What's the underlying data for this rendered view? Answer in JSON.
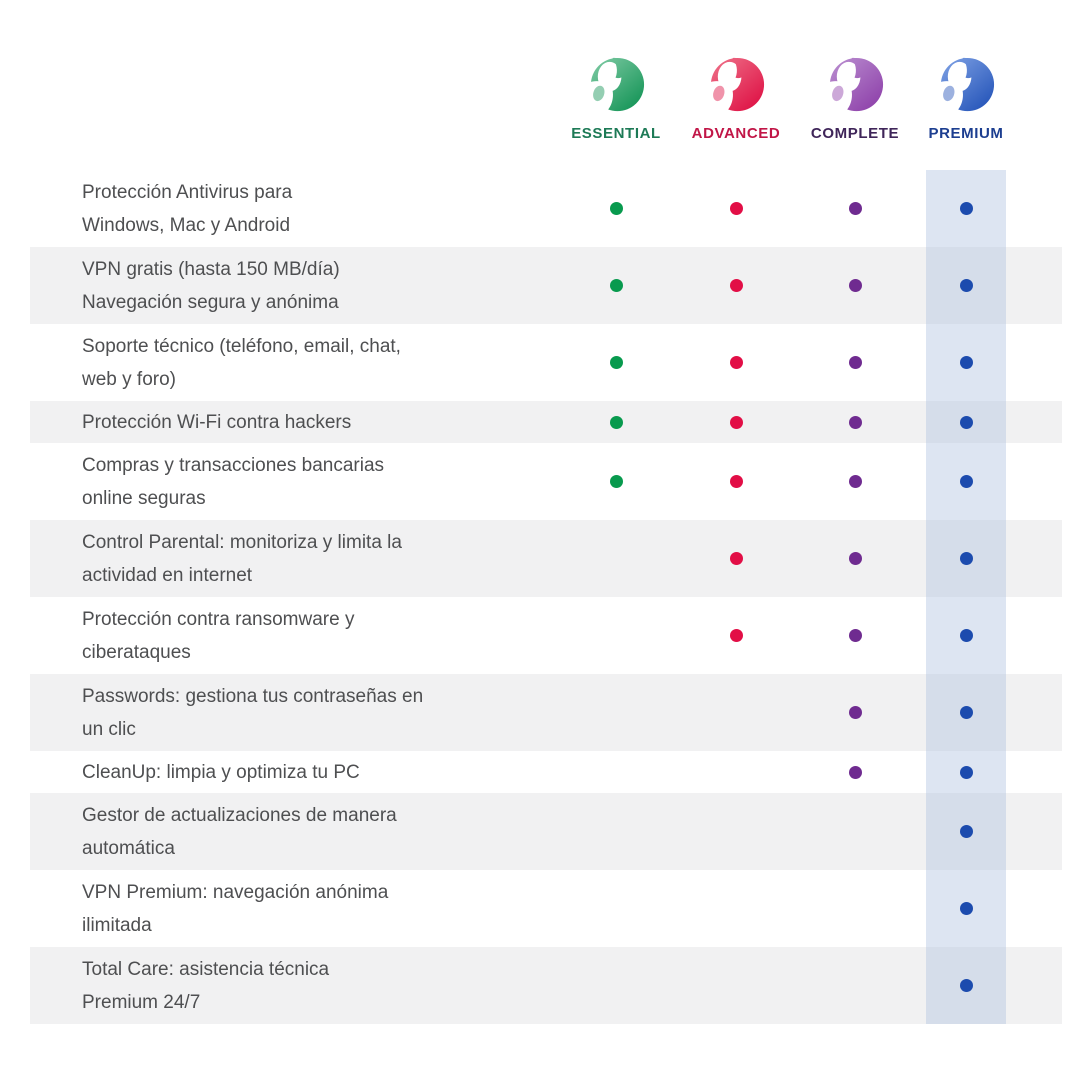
{
  "header": {
    "plans": [
      {
        "label": "ESSENTIAL",
        "label_color": "#1d7a56",
        "dot_color": "#089a4e",
        "logo_light": "#7cc9a2",
        "logo_dark": "#129355"
      },
      {
        "label": "ADVANCED",
        "label_color": "#c11647",
        "dot_color": "#e20e46",
        "logo_light": "#ee6e87",
        "logo_dark": "#de0f43"
      },
      {
        "label": "COMPLETE",
        "label_color": "#3f2559",
        "dot_color": "#6f2b90",
        "logo_light": "#b98ccf",
        "logo_dark": "#8d3fa9"
      },
      {
        "label": "PREMIUM",
        "label_color": "#1c3e90",
        "dot_color": "#1c4bae",
        "logo_light": "#7c9fe3",
        "logo_dark": "#2353b8"
      }
    ]
  },
  "table": {
    "rows": [
      {
        "lines": [
          "Protección Antivirus para",
          "Windows, Mac y Android"
        ],
        "included": [
          true,
          true,
          true,
          true
        ]
      },
      {
        "lines": [
          "VPN gratis (hasta 150 MB/día)",
          "Navegación segura y anónima"
        ],
        "included": [
          true,
          true,
          true,
          true
        ]
      },
      {
        "lines": [
          "Soporte técnico (teléfono, email, chat,",
          "web y foro)"
        ],
        "included": [
          true,
          true,
          true,
          true
        ]
      },
      {
        "lines": [
          "Protección Wi-Fi contra hackers"
        ],
        "included": [
          true,
          true,
          true,
          true
        ]
      },
      {
        "lines": [
          "Compras y transacciones bancarias",
          "online seguras"
        ],
        "included": [
          true,
          true,
          true,
          true
        ]
      },
      {
        "lines": [
          "Control Parental: monitoriza y limita la",
          "actividad en internet"
        ],
        "included": [
          false,
          true,
          true,
          true
        ]
      },
      {
        "lines": [
          "Protección contra ransomware y",
          "ciberataques"
        ],
        "included": [
          false,
          true,
          true,
          true
        ]
      },
      {
        "lines": [
          "Passwords: gestiona tus contraseñas en",
          "un clic"
        ],
        "included": [
          false,
          false,
          true,
          true
        ]
      },
      {
        "lines": [
          "CleanUp: limpia y optimiza tu PC"
        ],
        "included": [
          false,
          false,
          true,
          true
        ]
      },
      {
        "lines": [
          "Gestor de actualizaciones de manera",
          "automática"
        ],
        "included": [
          false,
          false,
          false,
          true
        ]
      },
      {
        "lines": [
          "VPN Premium: navegación anónima",
          "ilimitada"
        ],
        "included": [
          false,
          false,
          false,
          true
        ]
      },
      {
        "lines": [
          "Total Care: asistencia técnica",
          "Premium 24/7"
        ],
        "included": [
          false,
          false,
          false,
          true
        ]
      }
    ]
  },
  "colors": {
    "background": "#ffffff",
    "row_stripe": "#f1f1f2",
    "row_white": "#ffffff",
    "premium_highlight": "rgba(175,194,224,0.42)",
    "feature_text": "#4e4f51"
  },
  "chart_data": {
    "type": "table",
    "title": "Comparativa de planes Panda Security",
    "columns": [
      "ESSENTIAL",
      "ADVANCED",
      "COMPLETE",
      "PREMIUM"
    ],
    "rows": [
      {
        "feature": "Protección Antivirus para Windows, Mac y Android",
        "values": [
          true,
          true,
          true,
          true
        ]
      },
      {
        "feature": "VPN gratis (hasta 150 MB/día) Navegación segura y anónima",
        "values": [
          true,
          true,
          true,
          true
        ]
      },
      {
        "feature": "Soporte técnico (teléfono, email, chat, web y foro)",
        "values": [
          true,
          true,
          true,
          true
        ]
      },
      {
        "feature": "Protección Wi-Fi contra hackers",
        "values": [
          true,
          true,
          true,
          true
        ]
      },
      {
        "feature": "Compras y transacciones bancarias online seguras",
        "values": [
          true,
          true,
          true,
          true
        ]
      },
      {
        "feature": "Control Parental: monitoriza y limita la actividad en internet",
        "values": [
          false,
          true,
          true,
          true
        ]
      },
      {
        "feature": "Protección contra ransomware y ciberataques",
        "values": [
          false,
          true,
          true,
          true
        ]
      },
      {
        "feature": "Passwords: gestiona tus contraseñas en un clic",
        "values": [
          false,
          false,
          true,
          true
        ]
      },
      {
        "feature": "CleanUp: limpia y optimiza tu PC",
        "values": [
          false,
          false,
          true,
          true
        ]
      },
      {
        "feature": "Gestor de actualizaciones de manera automática",
        "values": [
          false,
          false,
          false,
          true
        ]
      },
      {
        "feature": "VPN Premium: navegación anónima ilimitada",
        "values": [
          false,
          false,
          false,
          true
        ]
      },
      {
        "feature": "Total Care: asistencia técnica Premium 24/7",
        "values": [
          false,
          false,
          false,
          true
        ]
      }
    ],
    "layout": {
      "highlighted_column": "PREMIUM",
      "row_striping": true,
      "legend_position": "none"
    }
  }
}
